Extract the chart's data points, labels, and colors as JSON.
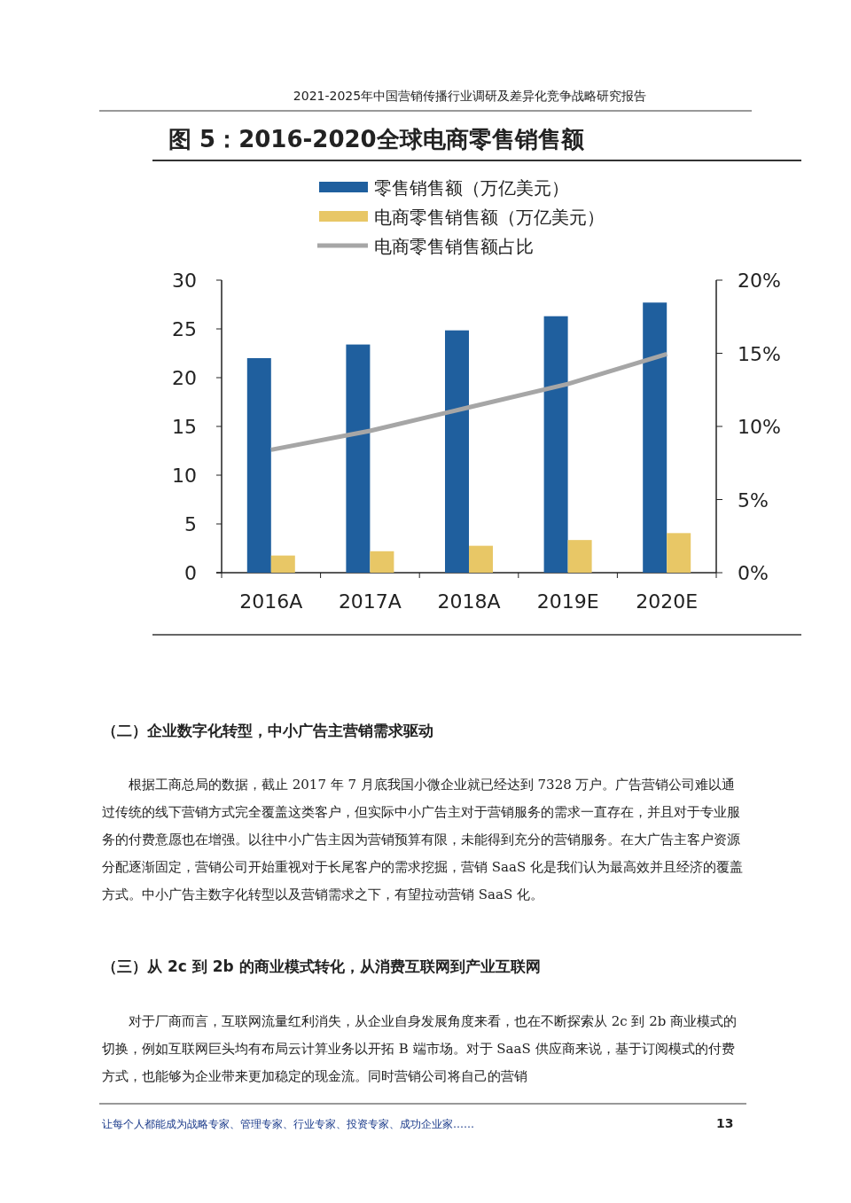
{
  "chart_data": {
    "type": "bar",
    "title": "图 5：2016-2020全球电商零售销售额",
    "categories": [
      "2016A",
      "2017A",
      "2018A",
      "2019E",
      "2020E"
    ],
    "series": [
      {
        "name": "零售销售额（万亿美元）",
        "color": "#1f5f9e",
        "values": [
          22.0,
          23.4,
          24.85,
          26.3,
          27.7
        ]
      },
      {
        "name": "电商零售销售额（万亿美元）",
        "color": "#e8c766",
        "values": [
          1.76,
          2.2,
          2.76,
          3.35,
          4.06
        ]
      },
      {
        "name": "电商零售销售额占比",
        "type": "line",
        "axis": "y2",
        "color": "#a6a6a6",
        "values": [
          8.4,
          9.7,
          11.3,
          12.9,
          14.95
        ]
      }
    ],
    "ylim": [
      0,
      30
    ],
    "yticks": [
      0,
      5,
      10,
      15,
      20,
      25,
      30
    ],
    "y2lim": [
      0,
      20
    ],
    "y2ticks": [
      {
        "value": 0,
        "label": "0%"
      },
      {
        "value": 5,
        "label": "5%"
      },
      {
        "value": 10,
        "label": "10%"
      },
      {
        "value": 15,
        "label": "15%"
      },
      {
        "value": 20,
        "label": "20%"
      }
    ],
    "legend": "top",
    "grid": false,
    "annotations": [
      "2021-2025年中国营销传播行业调研及差异化竞争战略研究报告",
      "（二）企业数字化转型，中小广告主营销需求驱动",
      "根据工商总局的数据，截止 2017 年 7 月底我国小微企业就已经达到 7328 万户。广告营销公司难以通过传统的线下营销方式完全覆盖这类客户，但实际中小广告主对于营销服务的需求一直存在，并且对于专业服务的付费意愿也在增强。以往中小广告主因为营销预算有限，未能得到充分的营销服务。在大广告主客户资源分配逐渐固定，营销公司开始重视对于长尾客户的需求挖掘，营销 SaaS 化是我们认为最高效并且经济的覆盖方式。中小广告主数字化转型以及营销需求之下，有望拉动营销 SaaS 化。",
      "（三）从 2c 到 2b 的商业模式转化，从消费互联网到产业互联网",
      "对于厂商而言，互联网流量红利消失，从企业自身发展角度来看，也在不断探索从 2c 到 2b 商业模式的切换，例如互联网巨头均有布局云计算业务以开拓 B 端市场。对于 SaaS 供应商来说，基于订阅模式的付费方式，也能够为企业带来更加稳定的现金流。同时营销公司将自己的营销",
      "让每个人都能成为战略专家、管理专家、行业专家、投资专家、成功企业家……",
      "13"
    ]
  }
}
